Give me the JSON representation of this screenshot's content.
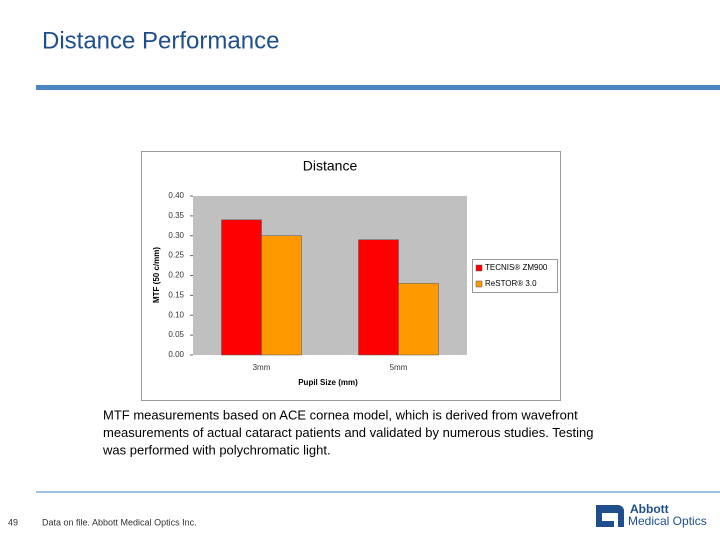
{
  "slide_title": "Distance Performance",
  "chart_data": {
    "type": "bar",
    "title": "Distance",
    "x_label": "Pupil Size (mm)",
    "y_label": "MTF (50 c/mm)",
    "categories": [
      "3mm",
      "5mm"
    ],
    "series": [
      {
        "name": "TECNIS® ZM900",
        "color": "#ff0000",
        "values": [
          0.34,
          0.29
        ]
      },
      {
        "name": "ReSTOR® 3.0",
        "color": "#ff9900",
        "values": [
          0.3,
          0.18
        ]
      }
    ],
    "ylim": [
      0,
      0.4
    ],
    "yticks": [
      {
        "value": 0,
        "label": "0.00"
      },
      {
        "value": 0.05,
        "label": "0.05"
      },
      {
        "value": 0.1,
        "label": "0.10"
      },
      {
        "value": 0.15,
        "label": "0.15"
      },
      {
        "value": 0.2,
        "label": "0.20"
      },
      {
        "value": 0.25,
        "label": "0.25"
      },
      {
        "value": 0.3,
        "label": "0.30"
      },
      {
        "value": 0.35,
        "label": "0.35"
      },
      {
        "value": 0.4,
        "label": "0.40"
      }
    ],
    "grid": false,
    "legend": "right",
    "plot_background": "#c0c0c0"
  },
  "caption": [
    "MTF measurements based on ACE cornea model, which is derived from wavefront",
    "measurements of actual cataract patients and validated by numerous studies. Testing",
    "was performed with polychromatic light."
  ],
  "page_number": "49",
  "footer": "Data on file. Abbott Medical Optics Inc.",
  "logo": {
    "name": "Abbott",
    "division": "Medical Optics"
  }
}
